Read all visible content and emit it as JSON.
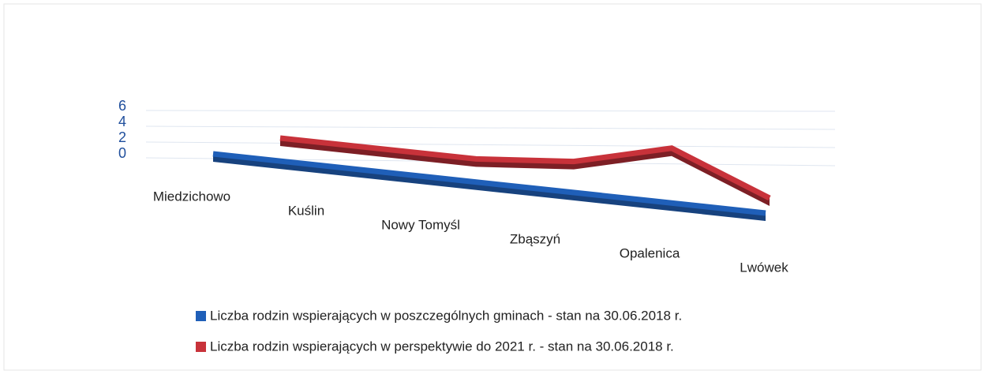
{
  "chart_data": {
    "type": "line3d",
    "categories": [
      "Miedzichowo",
      "Kuślin",
      "Nowy Tomyśl",
      "Zbąszyń",
      "Opalenica",
      "Lwówek"
    ],
    "series": [
      {
        "name": "Liczba rodzin wspierających w poszczególnych gminach - stan na 30.06.2018 r.",
        "color": "#1f5fb8",
        "values": [
          0,
          0,
          0,
          0,
          0,
          0
        ]
      },
      {
        "name": "Liczba rodzin wspierających w perspektywie do 2021 r. - stan na 30.06.2018 r.",
        "color": "#c8323a",
        "values": [
          1,
          1,
          1,
          2,
          5,
          0
        ]
      }
    ],
    "ylim": [
      0,
      6
    ],
    "yticks": [
      0,
      2,
      4,
      6
    ],
    "grid": true
  }
}
